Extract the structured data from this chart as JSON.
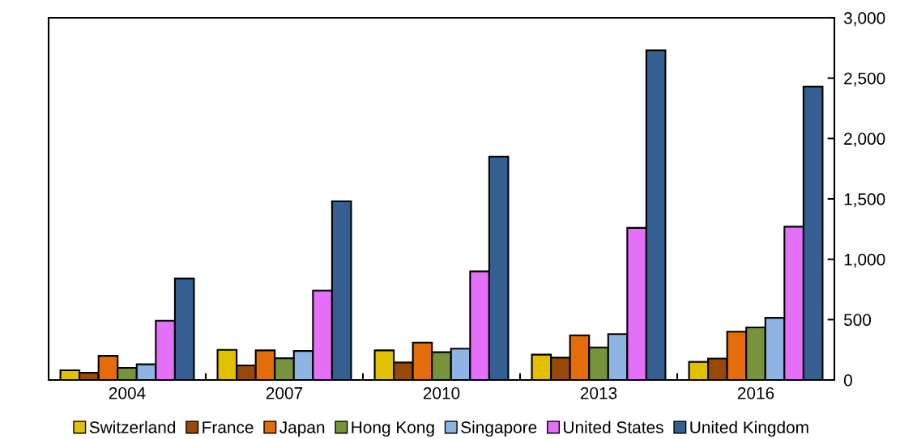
{
  "chart_data": {
    "type": "bar",
    "categories": [
      "2004",
      "2007",
      "2010",
      "2013",
      "2016"
    ],
    "series": [
      {
        "name": "Switzerland",
        "color": "#e0c000",
        "values": [
          80,
          250,
          245,
          210,
          150
        ]
      },
      {
        "name": "France",
        "color": "#984807",
        "values": [
          60,
          120,
          145,
          185,
          178
        ]
      },
      {
        "name": "Japan",
        "color": "#e46c0a",
        "values": [
          200,
          245,
          310,
          370,
          400
        ]
      },
      {
        "name": "Hong Kong",
        "color": "#77933c",
        "values": [
          100,
          180,
          230,
          270,
          435
        ]
      },
      {
        "name": "Singapore",
        "color": "#8eb4e3",
        "values": [
          130,
          240,
          260,
          380,
          515
        ]
      },
      {
        "name": "United States",
        "color": "#e46ff8",
        "values": [
          490,
          740,
          900,
          1260,
          1270
        ]
      },
      {
        "name": "United Kingdom",
        "color": "#355f91",
        "values": [
          840,
          1480,
          1850,
          2730,
          2430
        ]
      }
    ],
    "ylim": [
      0,
      3000
    ],
    "yticks": [
      0,
      {
        "value": 500,
        "label": "500"
      },
      {
        "value": 1000,
        "label": "1,000"
      },
      {
        "value": 1500,
        "label": "1,500"
      },
      {
        "value": 2000,
        "label": "2,000"
      },
      {
        "value": 2500,
        "label": "2,500"
      },
      {
        "value": 3000,
        "label": "3,000"
      }
    ],
    "grid": false,
    "legend": "bottom"
  }
}
